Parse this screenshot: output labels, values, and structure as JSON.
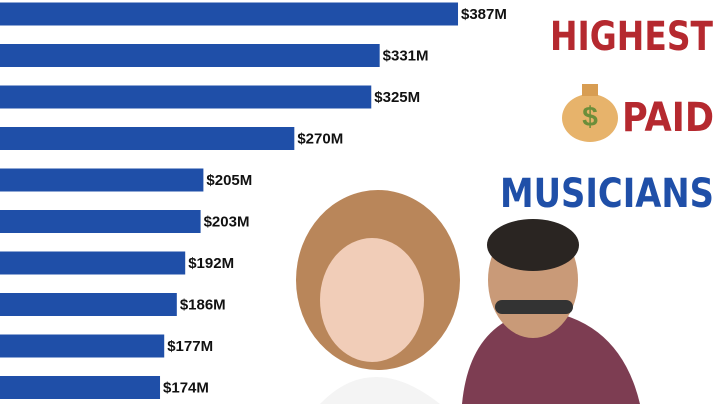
{
  "chart_data": {
    "type": "hbar",
    "title_lines": [
      "HIGHEST",
      "PAID",
      "MUSICIANS"
    ],
    "categories": [
      null,
      null,
      null,
      null,
      null,
      null,
      null,
      null,
      null,
      null
    ],
    "values": [
      387,
      331,
      325,
      270,
      205,
      203,
      192,
      186,
      177,
      174
    ],
    "value_labels": [
      "$387M",
      "$331M",
      "$325M",
      "$270M",
      "$205M",
      "$203M",
      "$192M",
      "$186M",
      "$177M",
      "$174M"
    ],
    "color": "#1f4fa8",
    "title_colors": [
      "#b5292f",
      "#b5292f",
      "#1f4fa8"
    ]
  }
}
